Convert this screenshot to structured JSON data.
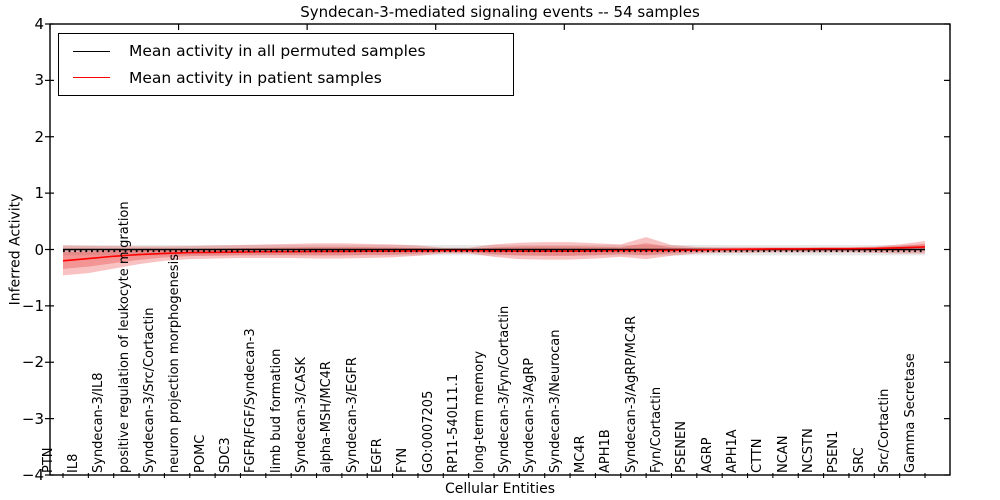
{
  "title": "Syndecan-3-mediated signaling events -- 54 samples",
  "axes": {
    "x_label": "Cellular Entities",
    "y_label": "Inferred Activity",
    "y_tick_labels": [
      "4",
      "3",
      "2",
      "1",
      "0",
      "−1",
      "−2",
      "−3",
      "−4"
    ]
  },
  "legend": {
    "entries": [
      {
        "label": "Mean activity in all permuted samples",
        "color": "#000000"
      },
      {
        "label": "Mean activity in patient samples",
        "color": "#ff0000"
      }
    ]
  },
  "colors": {
    "permuted_line": "#000000",
    "patient_line": "#ff0000",
    "patient_band": "rgba(230,30,30,0.27)",
    "permuted_band": "rgba(110,110,110,0.16)",
    "axis": "#000000"
  },
  "chart_data": {
    "type": "line",
    "title": "Syndecan-3-mediated signaling events -- 54 samples",
    "xlabel": "Cellular Entities",
    "ylabel": "Inferred Activity",
    "ylim": [
      -4,
      4
    ],
    "y_ticks": [
      4,
      3,
      2,
      1,
      0,
      -1,
      -2,
      -3,
      -4
    ],
    "grid": false,
    "legend_position": "upper left",
    "categories": [
      "PTN",
      "IL8",
      "Syndecan-3/IL8",
      "positive regulation of leukocyte migration",
      "Syndecan-3/Src/Cortactin",
      "neuron projection morphogenesis",
      "POMC",
      "SDC3",
      "FGFR/FGF/Syndecan-3",
      "limb bud formation",
      "Syndecan-3/CASK",
      "alpha-MSH/MC4R",
      "Syndecan-3/EGFR",
      "EGFR",
      "FYN",
      "GO:0007205",
      "RP11-540L11.1",
      "long-term memory",
      "Syndecan-3/Fyn/Cortactin",
      "Syndecan-3/AgRP",
      "Syndecan-3/Neurocan",
      "MC4R",
      "APH1B",
      "Syndecan-3/AgRP/MC4R",
      "Fyn/Cortactin",
      "PSENEN",
      "AGRP",
      "APH1A",
      "CTTN",
      "NCAN",
      "NCSTN",
      "PSEN1",
      "SRC",
      "Src/Cortactin",
      "Gamma Secretase"
    ],
    "series": [
      {
        "name": "Mean activity in all permuted samples",
        "color": "#000000",
        "constant": 0.0
      },
      {
        "name": "Mean activity in patient samples",
        "color": "#ff0000",
        "values": [
          -0.2,
          -0.16,
          -0.12,
          -0.09,
          -0.07,
          -0.055,
          -0.05,
          -0.045,
          -0.04,
          -0.04,
          -0.035,
          -0.035,
          -0.03,
          -0.03,
          -0.025,
          -0.02,
          -0.02,
          -0.025,
          -0.03,
          -0.03,
          -0.03,
          -0.025,
          -0.02,
          -0.02,
          -0.015,
          -0.01,
          0.0,
          0.005,
          0.01,
          0.01,
          0.015,
          0.015,
          0.02,
          0.03,
          0.045
        ]
      }
    ],
    "bands": {
      "patient": {
        "upper": [
          0.07,
          0.065,
          0.06,
          0.055,
          0.055,
          0.06,
          0.07,
          0.08,
          0.09,
          0.1,
          0.11,
          0.11,
          0.1,
          0.09,
          0.07,
          0.03,
          0.03,
          0.09,
          0.12,
          0.13,
          0.13,
          0.11,
          0.09,
          0.22,
          0.08,
          0.045,
          0.04,
          0.04,
          0.04,
          0.04,
          0.04,
          0.04,
          0.05,
          0.09,
          0.15
        ],
        "lower": [
          -0.46,
          -0.42,
          -0.34,
          -0.26,
          -0.2,
          -0.17,
          -0.16,
          -0.15,
          -0.15,
          -0.15,
          -0.16,
          -0.16,
          -0.15,
          -0.14,
          -0.11,
          -0.07,
          -0.07,
          -0.13,
          -0.17,
          -0.18,
          -0.18,
          -0.16,
          -0.13,
          -0.17,
          -0.11,
          -0.07,
          -0.06,
          -0.06,
          -0.05,
          -0.05,
          -0.05,
          -0.05,
          -0.06,
          -0.07,
          -0.07
        ]
      },
      "permuted": {
        "upper": 0.08,
        "lower": -0.105
      }
    }
  }
}
